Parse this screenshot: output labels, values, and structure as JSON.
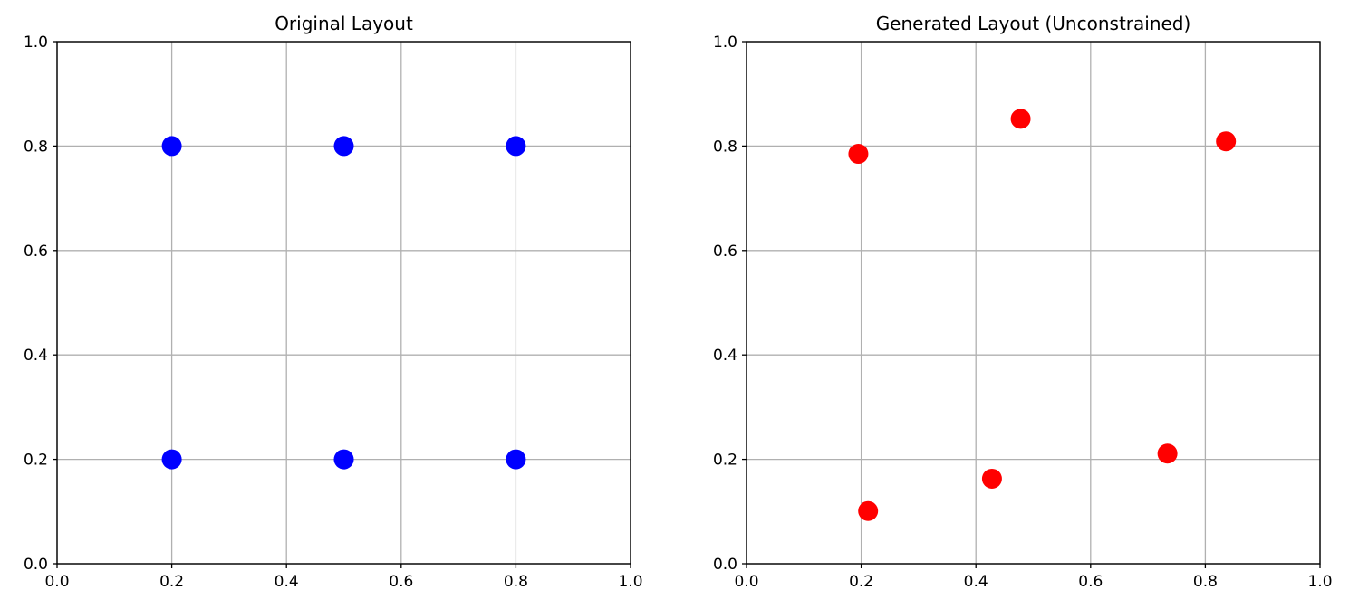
{
  "chart_data": [
    {
      "type": "scatter",
      "title": "Original Layout",
      "xlabel": "",
      "ylabel": "",
      "xlim": [
        0.0,
        1.0
      ],
      "ylim": [
        0.0,
        1.0
      ],
      "xticks": [
        "0.0",
        "0.2",
        "0.4",
        "0.6",
        "0.8",
        "1.0"
      ],
      "yticks": [
        "0.0",
        "0.2",
        "0.4",
        "0.6",
        "0.8",
        "1.0"
      ],
      "grid": true,
      "color": "#0000ff",
      "points": [
        {
          "x": 0.2,
          "y": 0.8
        },
        {
          "x": 0.5,
          "y": 0.8
        },
        {
          "x": 0.8,
          "y": 0.8
        },
        {
          "x": 0.2,
          "y": 0.2
        },
        {
          "x": 0.5,
          "y": 0.2
        },
        {
          "x": 0.8,
          "y": 0.2
        }
      ]
    },
    {
      "type": "scatter",
      "title": "Generated Layout (Unconstrained)",
      "xlabel": "",
      "ylabel": "",
      "xlim": [
        0.0,
        1.0
      ],
      "ylim": [
        0.0,
        1.0
      ],
      "xticks": [
        "0.0",
        "0.2",
        "0.4",
        "0.6",
        "0.8",
        "1.0"
      ],
      "yticks": [
        "0.0",
        "0.2",
        "0.4",
        "0.6",
        "0.8",
        "1.0"
      ],
      "grid": true,
      "color": "#ff0000",
      "points": [
        {
          "x": 0.195,
          "y": 0.785
        },
        {
          "x": 0.478,
          "y": 0.852
        },
        {
          "x": 0.836,
          "y": 0.809
        },
        {
          "x": 0.212,
          "y": 0.101
        },
        {
          "x": 0.428,
          "y": 0.163
        },
        {
          "x": 0.734,
          "y": 0.211
        }
      ]
    }
  ]
}
